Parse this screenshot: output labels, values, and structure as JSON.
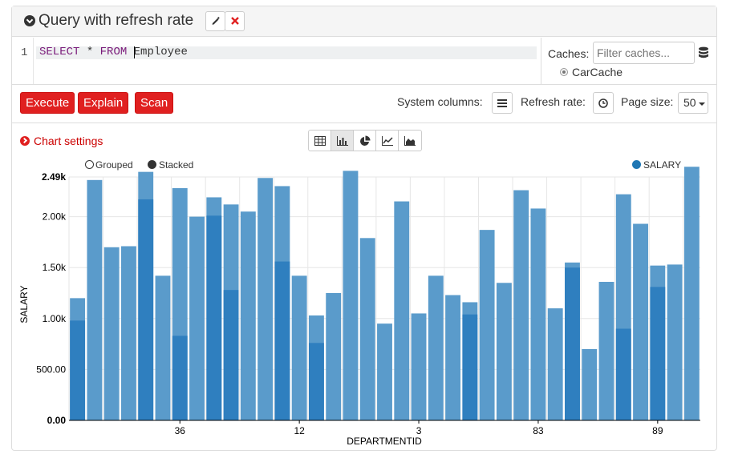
{
  "header": {
    "title": "Query with refresh rate",
    "edit_icon": "pencil-icon",
    "remove_icon": "close-icon"
  },
  "editor": {
    "line_number": "1",
    "kw_select": "SELECT",
    "star": "*",
    "kw_from": "FROM",
    "table": "Employee"
  },
  "caches": {
    "label": "Caches:",
    "filter_placeholder": "Filter caches...",
    "selected": "CarCache"
  },
  "toolbar": {
    "execute": "Execute",
    "explain": "Explain",
    "scan": "Scan",
    "system_columns_label": "System columns:",
    "refresh_rate_label": "Refresh rate:",
    "page_size_label": "Page size:",
    "page_size_value": "50"
  },
  "chart_settings": {
    "label": "Chart settings"
  },
  "colors": {
    "accent": "#e02020",
    "bar": "#5a9bcb",
    "bar_dark": "#2f7fbf",
    "grid": "#e6e6e6"
  },
  "chart_data": {
    "type": "bar",
    "mode_options": [
      "Grouped",
      "Stacked"
    ],
    "selected_mode": "Stacked",
    "xlabel": "DEPARTMENTID",
    "ylabel": "SALARY",
    "legend": [
      "SALARY"
    ],
    "legend_position": "top-right",
    "yticks": [
      "0.00",
      "500.00",
      "1.00k",
      "1.50k",
      "2.00k",
      "2.49k"
    ],
    "ylim": [
      0,
      2390
    ],
    "xtick_labels": [
      {
        "label": "36",
        "index": 6
      },
      {
        "label": "12",
        "index": 13
      },
      {
        "label": "3",
        "index": 20
      },
      {
        "label": "83",
        "index": 27
      },
      {
        "label": "89",
        "index": 34
      }
    ],
    "series": [
      {
        "name": "SALARY",
        "values": [
          1200,
          2360,
          1700,
          1710,
          2440,
          1420,
          2280,
          2000,
          2190,
          2120,
          2050,
          2380,
          2300,
          1420,
          1030,
          1250,
          2450,
          1790,
          950,
          2150,
          1050,
          1420,
          1230,
          1160,
          1870,
          1350,
          2260,
          2080,
          1100,
          1550,
          700,
          1360,
          2220,
          1930,
          1520,
          1530,
          2490
        ],
        "overlay": [
          980,
          null,
          null,
          null,
          2170,
          null,
          830,
          null,
          2010,
          1280,
          null,
          null,
          1560,
          null,
          760,
          null,
          null,
          null,
          null,
          null,
          null,
          null,
          null,
          1040,
          null,
          null,
          null,
          null,
          null,
          1500,
          null,
          null,
          900,
          null,
          1310,
          null,
          null
        ]
      }
    ]
  }
}
